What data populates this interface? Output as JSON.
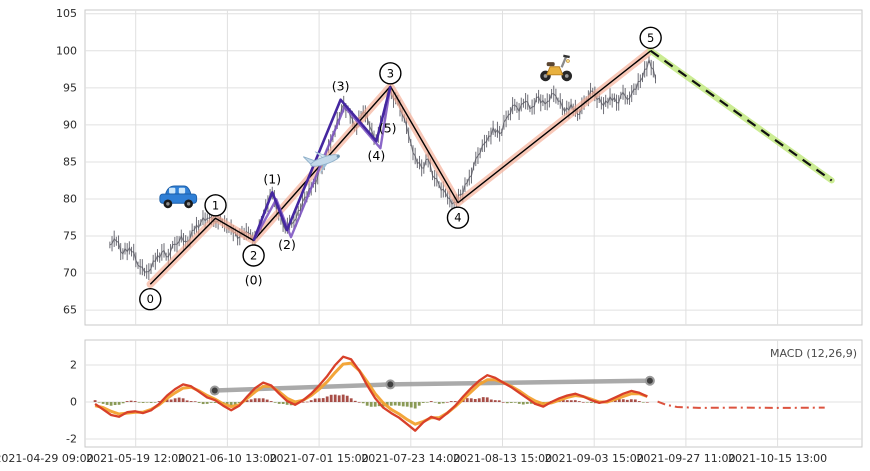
{
  "chart_data": [
    {
      "name": "price-elliott-panel",
      "type": "line",
      "title": "",
      "xlabel": "",
      "ylabel": "",
      "grid": true,
      "ylim": [
        63,
        105.5
      ],
      "yticks": [
        65,
        70,
        75,
        80,
        85,
        90,
        95,
        100,
        105
      ],
      "x_tick_labels": [
        "2021-04-29 09:00",
        "2021-05-19 12:00",
        "2021-06-10 13:00",
        "2021-07-01 15:00",
        "2021-07-23 14:00",
        "2021-08-13 15:00",
        "2021-09-03 15:00",
        "2021-09-27 11:00",
        "2021-10-15 13:00"
      ],
      "price_series": {
        "x0": 0.032,
        "dx": 0.00836,
        "values": [
          73.8,
          74.3,
          72.6,
          73.4,
          71.8,
          70.8,
          70.2,
          71.6,
          72.8,
          72.2,
          73.9,
          75.0,
          74.2,
          75.8,
          76.8,
          77.4,
          77.0,
          77.6,
          76.4,
          75.4,
          74.9,
          75.6,
          74.4,
          76.2,
          79.0,
          80.8,
          77.8,
          75.9,
          76.6,
          78.4,
          80.2,
          81.4,
          83.0,
          85.0,
          87.6,
          90.6,
          92.8,
          91.2,
          89.6,
          91.8,
          89.8,
          88.2,
          91.0,
          94.6,
          93.6,
          91.4,
          88.6,
          85.8,
          84.2,
          85.4,
          82.8,
          81.2,
          80.2,
          79.6,
          80.6,
          82.2,
          84.4,
          86.2,
          87.8,
          89.6,
          88.8,
          90.8,
          92.6,
          91.8,
          93.2,
          92.4,
          93.8,
          92.8,
          94.2,
          93.2,
          91.8,
          92.8,
          91.4,
          93.0,
          94.6,
          93.4,
          92.6,
          93.8,
          93.0,
          94.4,
          93.6,
          94.8,
          96.4,
          98.8,
          96.2
        ]
      },
      "elliott_waves": {
        "major": [
          {
            "t": 0.084,
            "price": 68.5,
            "label": "0",
            "side": "below"
          },
          {
            "t": 0.168,
            "price": 77.4,
            "label": "1",
            "side": "above"
          },
          {
            "t": 0.217,
            "price": 74.4,
            "label": "2",
            "side": "below"
          },
          {
            "t": 0.393,
            "price": 95.2,
            "label": "3",
            "side": "above"
          },
          {
            "t": 0.48,
            "price": 79.5,
            "label": "4",
            "side": "below"
          },
          {
            "t": 0.728,
            "price": 100.0,
            "label": "5",
            "side": "above"
          }
        ],
        "minor": [
          {
            "t": 0.217,
            "price": 74.4,
            "label": "(0)",
            "side": "below-far"
          },
          {
            "t": 0.241,
            "price": 80.9,
            "label": "(1)",
            "side": "above"
          },
          {
            "t": 0.26,
            "price": 75.8,
            "label": "(2)",
            "side": "below"
          },
          {
            "t": 0.329,
            "price": 93.4,
            "label": "(3)",
            "side": "above"
          },
          {
            "t": 0.375,
            "price": 87.8,
            "label": "(4)",
            "side": "below"
          },
          {
            "t": 0.387,
            "price": 90.3,
            "label": "(5)",
            "side": "right"
          }
        ],
        "projection": {
          "t": 0.961,
          "price": 82.5
        }
      },
      "icons": [
        {
          "name": "car",
          "t": 0.12,
          "price": 80.2
        },
        {
          "name": "plane",
          "t": 0.309,
          "price": 85.2
        },
        {
          "name": "scooter",
          "t": 0.606,
          "price": 98.0
        }
      ]
    },
    {
      "name": "macd-panel",
      "type": "line",
      "legend": "MACD (12,26,9)",
      "legend_position": "top-right",
      "ylim": [
        -2.43,
        3.35
      ],
      "yticks": [
        -2,
        0,
        2
      ],
      "macd": {
        "x0": 0.013,
        "dx": 0.0103,
        "values": [
          -0.1,
          -0.4,
          -0.7,
          -0.8,
          -0.55,
          -0.5,
          -0.6,
          -0.45,
          -0.1,
          0.35,
          0.7,
          0.95,
          0.85,
          0.55,
          0.25,
          0.1,
          -0.2,
          -0.45,
          -0.2,
          0.3,
          0.75,
          1.05,
          0.9,
          0.45,
          0.05,
          -0.15,
          0.1,
          0.45,
          0.9,
          1.4,
          2.0,
          2.45,
          2.3,
          1.7,
          0.9,
          0.2,
          -0.3,
          -0.6,
          -0.85,
          -1.2,
          -1.55,
          -1.1,
          -0.8,
          -0.95,
          -0.6,
          -0.2,
          0.3,
          0.75,
          1.15,
          1.45,
          1.3,
          1.05,
          0.8,
          0.5,
          0.2,
          -0.1,
          -0.25,
          0.0,
          0.2,
          0.35,
          0.45,
          0.3,
          0.1,
          -0.05,
          0.05,
          0.25,
          0.45,
          0.6,
          0.5,
          0.3
        ]
      },
      "signal": {
        "x0": 0.013,
        "dx": 0.0103,
        "values": [
          -0.2,
          -0.3,
          -0.5,
          -0.65,
          -0.6,
          -0.55,
          -0.55,
          -0.4,
          -0.15,
          0.2,
          0.5,
          0.75,
          0.8,
          0.6,
          0.35,
          0.15,
          -0.1,
          -0.25,
          -0.15,
          0.2,
          0.55,
          0.85,
          0.85,
          0.55,
          0.2,
          0.0,
          0.1,
          0.35,
          0.7,
          1.1,
          1.6,
          2.05,
          2.1,
          1.7,
          1.1,
          0.45,
          -0.05,
          -0.4,
          -0.65,
          -0.95,
          -1.2,
          -1.05,
          -0.85,
          -0.85,
          -0.6,
          -0.25,
          0.15,
          0.55,
          0.95,
          1.2,
          1.2,
          1.05,
          0.85,
          0.6,
          0.3,
          0.05,
          -0.1,
          -0.05,
          0.1,
          0.25,
          0.35,
          0.3,
          0.15,
          0.0,
          0.0,
          0.15,
          0.3,
          0.45,
          0.45,
          0.3
        ]
      },
      "projection": [
        [
          0.737,
          0.02
        ],
        [
          0.748,
          -0.15
        ],
        [
          0.762,
          -0.27
        ],
        [
          0.79,
          -0.32
        ],
        [
          0.84,
          -0.3
        ],
        [
          0.9,
          -0.32
        ],
        [
          0.952,
          -0.3
        ]
      ],
      "trendline": [
        [
          0.167,
          0.62
        ],
        [
          0.393,
          0.95
        ],
        [
          0.727,
          1.15
        ]
      ]
    }
  ],
  "colors": {
    "price": "#55555f",
    "impulse_line": "#000000",
    "trend_glow": "#f5ab92",
    "subwave_primary": "#4527a0",
    "subwave_secondary": "#7e57c2",
    "projection_dash": "#111111",
    "projection_glow": "#c9ec8e",
    "macd_line": "#d8402a",
    "signal_line": "#f2a12f",
    "hist_pos": "#9e3b33",
    "hist_neg": "#7d8f45",
    "trendline": "#9b9b9b",
    "grid": "#e0e0e0",
    "panel_border": "#c9c9c9",
    "axis_text": "#2b2b2b"
  }
}
